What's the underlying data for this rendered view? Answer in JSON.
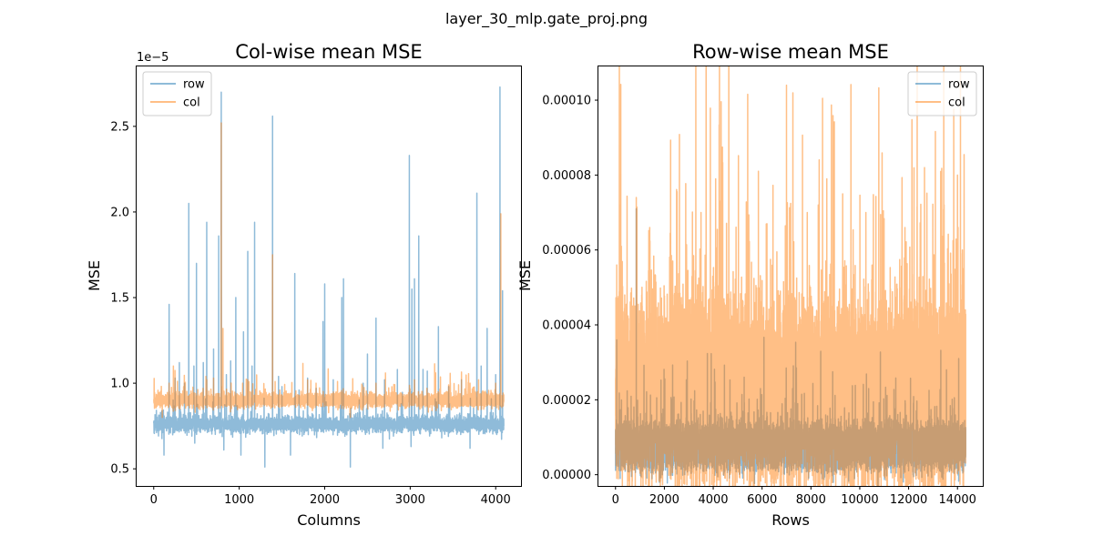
{
  "figure": {
    "suptitle": "layer_30_mlp.gate_proj.png"
  },
  "colors": {
    "row": "#1f77b4",
    "col": "#ff7f0e"
  },
  "chart_data": [
    {
      "type": "line",
      "title": "Col-wise mean MSE",
      "xlabel": "Columns",
      "ylabel": "MSE",
      "offset_text": "1e−5",
      "xlim": [
        -200,
        4296
      ],
      "ylim": [
        0.4,
        2.85
      ],
      "xticks": [
        0,
        1000,
        2000,
        3000,
        4000
      ],
      "xtick_labels": [
        "0",
        "1000",
        "2000",
        "3000",
        "4000"
      ],
      "yticks": [
        0.5,
        1.0,
        1.5,
        2.0,
        2.5
      ],
      "ytick_labels": [
        "0.5",
        "1.0",
        "1.5",
        "2.0",
        "2.5"
      ],
      "legend": {
        "location": "upper-left",
        "entries": [
          "row",
          "col"
        ]
      },
      "n_points": 4096,
      "series": [
        {
          "name": "row",
          "alpha": 0.5,
          "baseline": 0.76,
          "noise": 0.04,
          "spikes": [
            [
              180,
              1.46
            ],
            [
              250,
              1.03
            ],
            [
              300,
              1.12
            ],
            [
              360,
              1.0
            ],
            [
              410,
              2.05
            ],
            [
              470,
              1.1
            ],
            [
              500,
              1.7
            ],
            [
              580,
              1.12
            ],
            [
              620,
              1.94
            ],
            [
              700,
              1.2
            ],
            [
              760,
              1.86
            ],
            [
              790,
              2.7
            ],
            [
              850,
              1.05
            ],
            [
              900,
              1.13
            ],
            [
              960,
              1.5
            ],
            [
              1050,
              1.3
            ],
            [
              1100,
              1.77
            ],
            [
              1150,
              1.1
            ],
            [
              1180,
              1.94
            ],
            [
              1300,
              1.06
            ],
            [
              1390,
              2.56
            ],
            [
              1460,
              1.04
            ],
            [
              1500,
              0.98
            ],
            [
              1650,
              1.64
            ],
            [
              1700,
              0.96
            ],
            [
              1800,
              1.03
            ],
            [
              1900,
              0.97
            ],
            [
              1980,
              1.36
            ],
            [
              2000,
              1.58
            ],
            [
              2100,
              1.02
            ],
            [
              2200,
              1.5
            ],
            [
              2220,
              1.61
            ],
            [
              2300,
              1.04
            ],
            [
              2450,
              1.0
            ],
            [
              2500,
              1.17
            ],
            [
              2600,
              1.38
            ],
            [
              2700,
              1.02
            ],
            [
              2850,
              1.08
            ],
            [
              2990,
              2.33
            ],
            [
              3020,
              1.55
            ],
            [
              3050,
              1.61
            ],
            [
              3100,
              1.86
            ],
            [
              3150,
              1.08
            ],
            [
              3200,
              1.07
            ],
            [
              3330,
              1.33
            ],
            [
              3450,
              0.98
            ],
            [
              3600,
              1.02
            ],
            [
              3780,
              2.11
            ],
            [
              3830,
              1.1
            ],
            [
              3900,
              1.32
            ],
            [
              4000,
              1.05
            ],
            [
              4050,
              2.73
            ],
            [
              4080,
              1.54
            ]
          ],
          "dips": [
            [
              120,
              0.58
            ],
            [
              480,
              0.65
            ],
            [
              820,
              0.61
            ],
            [
              1020,
              0.58
            ],
            [
              1300,
              0.51
            ],
            [
              1600,
              0.58
            ],
            [
              2300,
              0.51
            ],
            [
              2680,
              0.62
            ],
            [
              3010,
              0.63
            ],
            [
              3700,
              0.62
            ]
          ]
        },
        {
          "name": "col",
          "alpha": 0.5,
          "baseline": 0.9,
          "noise": 0.035,
          "spikes": [
            [
              180,
              1.0
            ],
            [
              230,
              1.1
            ],
            [
              350,
              0.98
            ],
            [
              620,
              1.02
            ],
            [
              700,
              1.03
            ],
            [
              790,
              2.52
            ],
            [
              810,
              1.32
            ],
            [
              1040,
              1.0
            ],
            [
              1100,
              1.02
            ],
            [
              1390,
              1.75
            ],
            [
              1420,
              1.01
            ],
            [
              1800,
              1.02
            ],
            [
              2150,
              1.01
            ],
            [
              2600,
              1.0
            ],
            [
              3050,
              1.02
            ],
            [
              3450,
              0.99
            ],
            [
              3700,
              1.0
            ],
            [
              3800,
              1.02
            ],
            [
              4000,
              1.0
            ],
            [
              4060,
              1.99
            ]
          ],
          "dips": [
            [
              100,
              0.8
            ],
            [
              2300,
              0.8
            ]
          ]
        }
      ]
    },
    {
      "type": "line",
      "title": "Row-wise mean MSE",
      "xlabel": "Rows",
      "ylabel": "MSE",
      "xlim": [
        -700,
        15036
      ],
      "ylim": [
        -3e-06,
        0.000109
      ],
      "xticks": [
        0,
        2000,
        4000,
        6000,
        8000,
        10000,
        12000,
        14000
      ],
      "xtick_labels": [
        "0",
        "2000",
        "4000",
        "6000",
        "8000",
        "10000",
        "12000",
        "14000"
      ],
      "yticks": [
        0,
        2e-05,
        4e-05,
        6e-05,
        8e-05,
        0.0001
      ],
      "ytick_labels": [
        "0.00000",
        "0.00002",
        "0.00004",
        "0.00006",
        "0.00008",
        "0.00010"
      ],
      "legend": {
        "location": "upper-right",
        "entries": [
          "row",
          "col"
        ]
      },
      "n_points": 14336,
      "series": [
        {
          "name": "row",
          "alpha": 0.5,
          "baseline": 7.5e-06,
          "noise": 4.5e-06,
          "spikes": [
            [
              50,
              3.6e-05
            ],
            [
              850,
              7.1e-05
            ],
            [
              7250,
              2.3e-05
            ],
            [
              13550,
              2.8e-05
            ],
            [
              14050,
              3.1e-05
            ]
          ],
          "dips": []
        },
        {
          "name": "col",
          "alpha": 0.5,
          "baseline": 2.2e-05,
          "noise": 1.8e-05,
          "spikes": [
            [
              50,
              5.6e-05
            ],
            [
              200,
              7.2e-05
            ],
            [
              850,
              7.4e-05
            ],
            [
              1400,
              6.6e-05
            ],
            [
              3500,
              7e-05
            ],
            [
              4100,
              7.9e-05
            ],
            [
              4350,
              6.8e-05
            ],
            [
              5850,
              8.1e-05
            ],
            [
              6200,
              6.7e-05
            ],
            [
              7000,
              0.000104
            ],
            [
              8300,
              7.2e-05
            ],
            [
              8650,
              7.9e-05
            ],
            [
              9300,
              7.5e-05
            ],
            [
              10250,
              7e-05
            ],
            [
              11850,
              6.6e-05
            ],
            [
              12650,
              8.2e-05
            ],
            [
              14000,
              8e-05
            ],
            [
              14200,
              6e-05
            ]
          ],
          "dips": []
        }
      ]
    }
  ]
}
